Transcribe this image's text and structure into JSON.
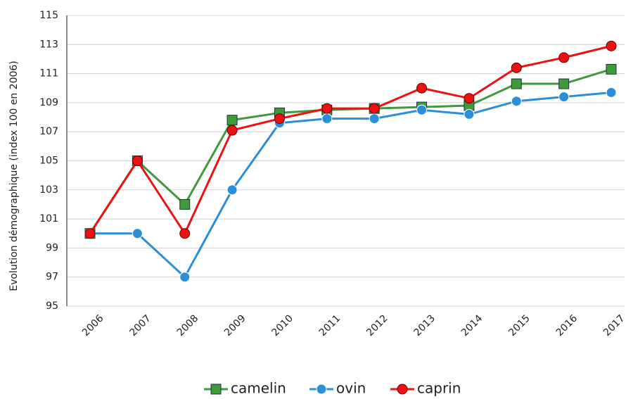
{
  "chart_data": {
    "type": "line",
    "y_label": "Evolution démographique (index 100 en 2006)",
    "categories": [
      "2006",
      "2007",
      "2008",
      "2009",
      "2010",
      "2011",
      "2012",
      "2013",
      "2014",
      "2015",
      "2016",
      "2017"
    ],
    "series": [
      {
        "name": "camelin",
        "color": "#3f9a3a",
        "marker": "square",
        "values": [
          100,
          105,
          102,
          107.8,
          108.3,
          108.5,
          108.6,
          108.7,
          108.8,
          110.3,
          110.3,
          111.3
        ]
      },
      {
        "name": "ovin",
        "color": "#2a8fd8",
        "marker": "circle",
        "values": [
          100,
          100,
          97,
          103,
          107.6,
          107.9,
          107.9,
          108.5,
          108.2,
          109.1,
          109.4,
          109.7
        ]
      },
      {
        "name": "caprin",
        "color": "#ee1111",
        "marker": "circle",
        "values": [
          100,
          105,
          100,
          107.1,
          107.9,
          108.6,
          108.6,
          110,
          109.3,
          111.4,
          112.1,
          112.9
        ]
      }
    ],
    "ylim": [
      95,
      115
    ],
    "yticks": [
      95,
      97,
      99,
      101,
      103,
      105,
      107,
      109,
      111,
      113,
      115
    ],
    "grid": true,
    "legend": "bottom"
  }
}
